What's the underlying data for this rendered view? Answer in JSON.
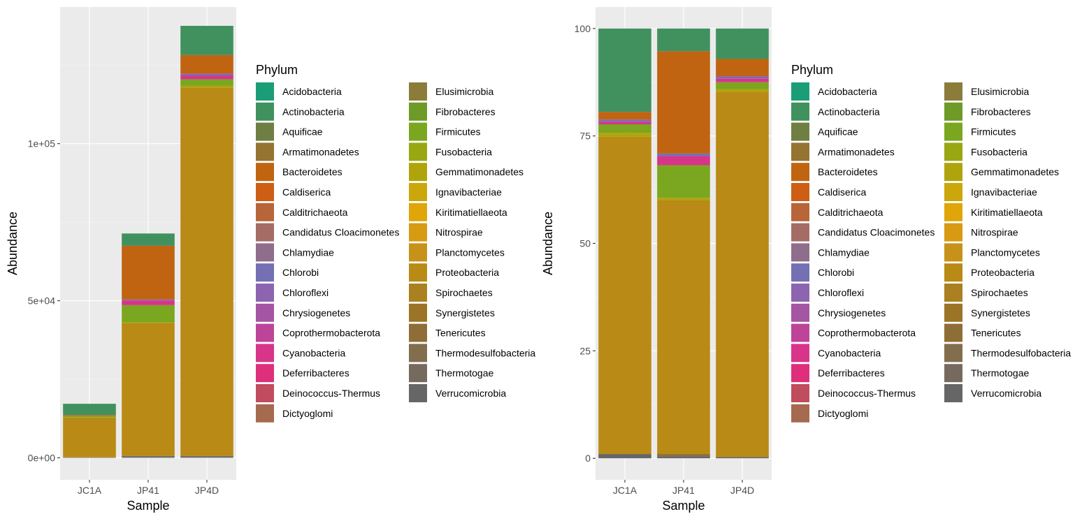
{
  "colors": {
    "Acidobacteria": "#1B9E77",
    "Actinobacteria": "#41915F",
    "Aquificae": "#6F7F43",
    "Armatimonadetes": "#957331",
    "Bacteroidetes": "#C06412",
    "Caldiserica": "#CE5E13",
    "Calditrichaeota": "#B8653A",
    "Candidatus Cloacimonetes": "#A56C65",
    "Chlamydiae": "#8E6E8B",
    "Chlorobi": "#7570B3",
    "Chloroflexi": "#8C64B0",
    "Chrysiogenetes": "#A456A4",
    "Coprothermobacterota": "#BD4499",
    "Cyanobacteria": "#D8348A",
    "Deferribacteres": "#DE2F7C",
    "Deinococcus-Thermus": "#C04C5E",
    "Dictyoglomi": "#A56A4F",
    "Elusimicrobia": "#8C7C3A",
    "Fibrobacteres": "#6E9A28",
    "Firmicutes": "#7BA61F",
    "Fusobacteria": "#98A712",
    "Gemmatimonadetes": "#B0A40D",
    "Ignavibacteriae": "#CBA70B",
    "Kiritimatiellaeota": "#E0A508",
    "Nitrospirae": "#D89A12",
    "Planctomycetes": "#C7921A",
    "Proteobacteria": "#B98A15",
    "Spirochaetes": "#AA8020",
    "Synergistetes": "#9B7428",
    "Tenericutes": "#8E6D37",
    "Thermodesulfobacteria": "#826E4D",
    "Thermotogae": "#766A5E",
    "Verrucomicrobia": "#666666"
  },
  "chart_data": [
    {
      "type": "bar",
      "stacked": true,
      "xlabel": "Sample",
      "ylabel": "Abundance",
      "categories": [
        "JC1A",
        "JP41",
        "JP4D"
      ],
      "yticks": [
        0,
        50000,
        100000
      ],
      "ytick_labels": [
        "0e+00",
        "5e+04",
        "1e+05"
      ],
      "ylim": [
        -7000,
        143500
      ],
      "grid": true,
      "legend": {
        "title": "Phylum",
        "position": "right",
        "columns": [
          [
            "Acidobacteria",
            "Actinobacteria",
            "Aquificae",
            "Armatimonadetes",
            "Bacteroidetes",
            "Caldiserica",
            "Calditrichaeota",
            "Candidatus Cloacimonetes",
            "Chlamydiae",
            "Chlorobi",
            "Chloroflexi",
            "Chrysiogenetes",
            "Coprothermobacterota",
            "Cyanobacteria",
            "Deferribacteres",
            "Deinococcus-Thermus",
            "Dictyoglomi"
          ],
          [
            "Elusimicrobia",
            "Fibrobacteres",
            "Firmicutes",
            "Fusobacteria",
            "Gemmatimonadetes",
            "Ignavibacteriae",
            "Kiritimatiellaeota",
            "Nitrospirae",
            "Planctomycetes",
            "Proteobacteria",
            "Spirochaetes",
            "Synergistetes",
            "Tenericutes",
            "Thermodesulfobacteria",
            "Thermotogae",
            "Verrucomicrobia"
          ]
        ]
      },
      "stacks": [
        {
          "category": "JC1A",
          "segments": [
            {
              "phylum": "Verrucomicrobia",
              "value": 150
            },
            {
              "phylum": "Proteobacteria",
              "value": 12700
            },
            {
              "phylum": "Gemmatimonadetes",
              "value": 150
            },
            {
              "phylum": "Firmicutes",
              "value": 300
            },
            {
              "phylum": "Bacteroidetes",
              "value": 300
            },
            {
              "phylum": "Actinobacteria",
              "value": 3600
            }
          ]
        },
        {
          "category": "JP41",
          "segments": [
            {
              "phylum": "Verrucomicrobia",
              "value": 300
            },
            {
              "phylum": "Thermotogae",
              "value": 300
            },
            {
              "phylum": "Proteobacteria",
              "value": 42200
            },
            {
              "phylum": "Gemmatimonadetes",
              "value": 300
            },
            {
              "phylum": "Firmicutes",
              "value": 5500
            },
            {
              "phylum": "Cyanobacteria",
              "value": 1500
            },
            {
              "phylum": "Chlorobi",
              "value": 300
            },
            {
              "phylum": "Bacteroidetes",
              "value": 17100
            },
            {
              "phylum": "Actinobacteria",
              "value": 3900
            }
          ]
        },
        {
          "category": "JP4D",
          "segments": [
            {
              "phylum": "Verrucomicrobia",
              "value": 300
            },
            {
              "phylum": "Thermotogae",
              "value": 300
            },
            {
              "phylum": "Proteobacteria",
              "value": 117200
            },
            {
              "phylum": "Gemmatimonadetes",
              "value": 600
            },
            {
              "phylum": "Firmicutes",
              "value": 2100
            },
            {
              "phylum": "Cyanobacteria",
              "value": 1100
            },
            {
              "phylum": "Chloroflexi",
              "value": 700
            },
            {
              "phylum": "Bacteroidetes",
              "value": 5900
            },
            {
              "phylum": "Actinobacteria",
              "value": 9300
            }
          ]
        }
      ]
    },
    {
      "type": "bar",
      "stacked": true,
      "xlabel": "Sample",
      "ylabel": "Abundance",
      "categories": [
        "JC1A",
        "JP41",
        "JP4D"
      ],
      "yticks": [
        0,
        25,
        50,
        75,
        100
      ],
      "ytick_labels": [
        "0",
        "25",
        "50",
        "75",
        "100"
      ],
      "ylim": [
        -5,
        105
      ],
      "grid": true,
      "legend": {
        "title": "Phylum",
        "position": "right",
        "columns": [
          [
            "Acidobacteria",
            "Actinobacteria",
            "Aquificae",
            "Armatimonadetes",
            "Bacteroidetes",
            "Caldiserica",
            "Calditrichaeota",
            "Candidatus Cloacimonetes",
            "Chlamydiae",
            "Chlorobi",
            "Chloroflexi",
            "Chrysiogenetes",
            "Coprothermobacterota",
            "Cyanobacteria",
            "Deferribacteres",
            "Deinococcus-Thermus",
            "Dictyoglomi"
          ],
          [
            "Elusimicrobia",
            "Fibrobacteres",
            "Firmicutes",
            "Fusobacteria",
            "Gemmatimonadetes",
            "Ignavibacteriae",
            "Kiritimatiellaeota",
            "Nitrospirae",
            "Planctomycetes",
            "Proteobacteria",
            "Spirochaetes",
            "Synergistetes",
            "Tenericutes",
            "Thermodesulfobacteria",
            "Thermotogae",
            "Verrucomicrobia"
          ]
        ]
      },
      "stacks": [
        {
          "category": "JC1A",
          "segments": [
            {
              "phylum": "Verrucomicrobia",
              "value": 1.0
            },
            {
              "phylum": "Proteobacteria",
              "value": 73.8
            },
            {
              "phylum": "Gemmatimonadetes",
              "value": 0.9
            },
            {
              "phylum": "Firmicutes",
              "value": 2.0
            },
            {
              "phylum": "Cyanobacteria",
              "value": 0.5
            },
            {
              "phylum": "Chloroflexi",
              "value": 0.6
            },
            {
              "phylum": "Bacteroidetes",
              "value": 1.8
            },
            {
              "phylum": "Actinobacteria",
              "value": 19.4
            }
          ]
        },
        {
          "category": "JP41",
          "segments": [
            {
              "phylum": "Verrucomicrobia",
              "value": 0.5
            },
            {
              "phylum": "Tenericutes",
              "value": 0.5
            },
            {
              "phylum": "Proteobacteria",
              "value": 59.1
            },
            {
              "phylum": "Gemmatimonadetes",
              "value": 0.5
            },
            {
              "phylum": "Firmicutes",
              "value": 7.6
            },
            {
              "phylum": "Cyanobacteria",
              "value": 2.1
            },
            {
              "phylum": "Chlorobi",
              "value": 0.6
            },
            {
              "phylum": "Bacteroidetes",
              "value": 23.8
            },
            {
              "phylum": "Actinobacteria",
              "value": 5.3
            }
          ]
        },
        {
          "category": "JP4D",
          "segments": [
            {
              "phylum": "Verrucomicrobia",
              "value": 0.3
            },
            {
              "phylum": "Proteobacteria",
              "value": 85.0
            },
            {
              "phylum": "Gemmatimonadetes",
              "value": 0.6
            },
            {
              "phylum": "Firmicutes",
              "value": 1.6
            },
            {
              "phylum": "Cyanobacteria",
              "value": 0.8
            },
            {
              "phylum": "Chloroflexi",
              "value": 0.6
            },
            {
              "phylum": "Bacteroidetes",
              "value": 4.0
            },
            {
              "phylum": "Actinobacteria",
              "value": 7.1
            }
          ]
        }
      ]
    }
  ]
}
